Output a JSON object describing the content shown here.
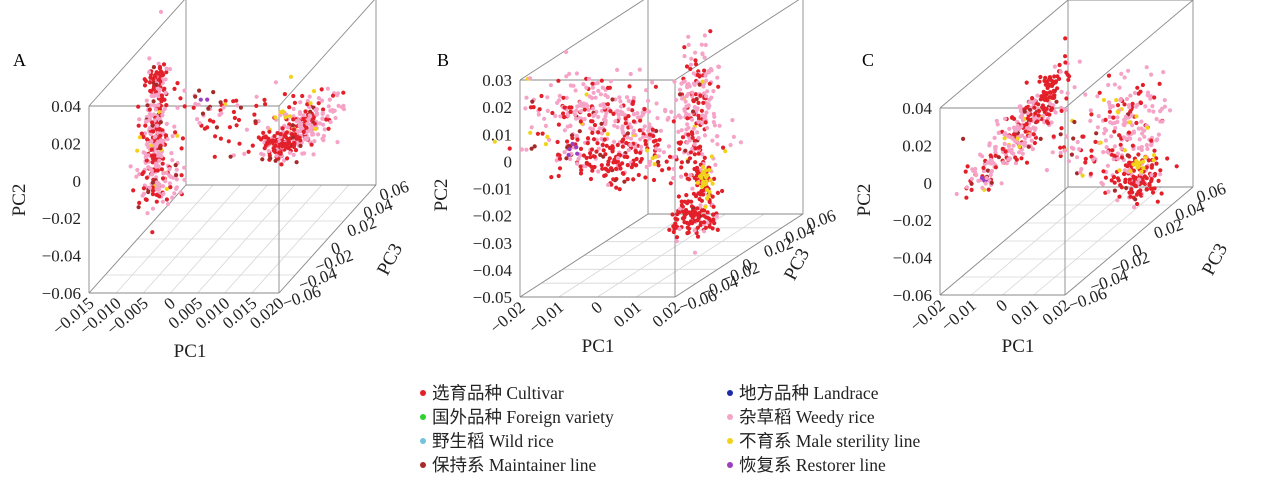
{
  "chart_data": [
    {
      "panel": "A",
      "type": "scatter",
      "xlabel": "PC1",
      "ylabel": "PC2",
      "zlabel": "PC3",
      "x_ticks": [
        "−0.015",
        "−0.010",
        "−0.005",
        "0",
        "0.005",
        "0.010",
        "0.015",
        "0.020"
      ],
      "y_ticks": [
        "−0.06",
        "−0.04",
        "−0.02",
        "0",
        "0.02",
        "0.04"
      ],
      "z_ticks": [
        "−0.06",
        "−0.04",
        "−0.02",
        "0",
        "0.02",
        "0.04",
        "0.06"
      ],
      "xlim": [
        -0.015,
        0.02
      ],
      "ylim": [
        -0.06,
        0.04
      ],
      "zlim": [
        -0.06,
        0.06
      ],
      "grid": true
    },
    {
      "panel": "B",
      "type": "scatter",
      "xlabel": "PC1",
      "ylabel": "PC2",
      "zlabel": "PC3",
      "x_ticks": [
        "−0.02",
        "−0.01",
        "0",
        "0.01",
        "0.02"
      ],
      "y_ticks": [
        "−0.05",
        "−0.04",
        "−0.03",
        "−0.02",
        "−0.01",
        "0",
        "0.01",
        "0.02",
        "0.03"
      ],
      "z_ticks": [
        "−0.06",
        "−0.04",
        "−0.02",
        "0",
        "0.02",
        "0.04",
        "0.06"
      ],
      "xlim": [
        -0.02,
        0.02
      ],
      "ylim": [
        -0.05,
        0.03
      ],
      "zlim": [
        -0.06,
        0.06
      ],
      "grid": true
    },
    {
      "panel": "C",
      "type": "scatter",
      "xlabel": "PC1",
      "ylabel": "PC2",
      "zlabel": "PC3",
      "x_ticks": [
        "−0.02",
        "−0.01",
        "0",
        "0.01",
        "0.02"
      ],
      "y_ticks": [
        "−0.06",
        "−0.04",
        "−0.02",
        "0",
        "0.02",
        "0.04"
      ],
      "z_ticks": [
        "−0.06",
        "−0.04",
        "−0.02",
        "0",
        "0.02",
        "0.04",
        "0.06"
      ],
      "xlim": [
        -0.02,
        0.02
      ],
      "ylim": [
        -0.06,
        0.04
      ],
      "zlim": [
        -0.06,
        0.06
      ],
      "grid": true
    }
  ],
  "legend": [
    {
      "label": "选育品种 Cultivar",
      "color": "#e3202a"
    },
    {
      "label": "国外品种 Foreign variety",
      "color": "#2dd22d"
    },
    {
      "label": "野生稻 Wild rice",
      "color": "#74c3dd"
    },
    {
      "label": "保持系 Maintainer line",
      "color": "#a52a2a"
    },
    {
      "label": "地方品种 Landrace",
      "color": "#1c2aa8"
    },
    {
      "label": "杂草稻 Weedy rice",
      "color": "#f5a3c7"
    },
    {
      "label": "不育系 Male sterility line",
      "color": "#f2d21b"
    },
    {
      "label": "恢复系 Restorer line",
      "color": "#9b3fc0"
    }
  ]
}
